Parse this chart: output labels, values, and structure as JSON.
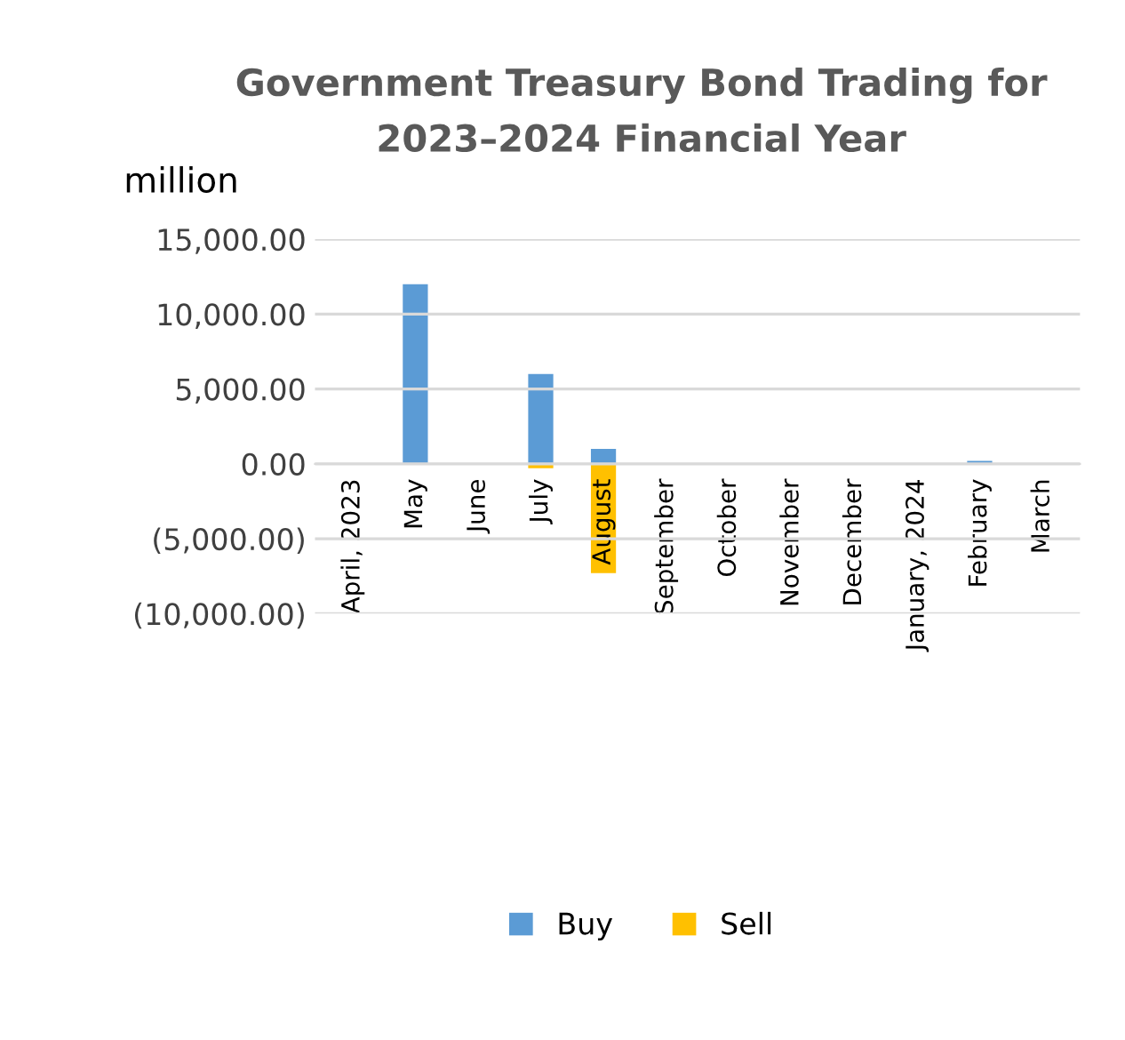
{
  "chart_data": {
    "type": "bar",
    "title": "Government Treasury Bond Trading for\n2023–2024 Financial Year",
    "ylabel": "million",
    "categories": [
      "April, 2023",
      "May",
      "June",
      "July",
      "August",
      "September",
      "October",
      "November",
      "December",
      "January, 2024",
      "February",
      "March"
    ],
    "stacked": true,
    "series": [
      {
        "name": "Buy",
        "color": "#5b9bd5",
        "values": [
          0,
          12000,
          0,
          6000,
          1000,
          null,
          null,
          0,
          0,
          0,
          200,
          0
        ]
      },
      {
        "name": "Sell",
        "color": "#ffc000",
        "values": [
          0,
          0,
          0,
          -300,
          -7300,
          0,
          0,
          0,
          0,
          0,
          0,
          0
        ]
      }
    ],
    "ylim": [
      -10000,
      15000
    ],
    "yticks": [
      {
        "value": -10000,
        "label": "(10,000.00)"
      },
      {
        "value": -5000,
        "label": "(5,000.00)"
      },
      {
        "value": 0,
        "label": "0.00"
      },
      {
        "value": 5000,
        "label": "5,000.00"
      },
      {
        "value": 10000,
        "label": "10,000.00"
      },
      {
        "value": 15000,
        "label": "15,000.00"
      }
    ],
    "grid": "y",
    "legend": "bottom"
  }
}
